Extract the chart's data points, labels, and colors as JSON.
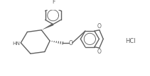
{
  "bg_color": "#ffffff",
  "line_color": "#606060",
  "lw": 1.0,
  "fig_width": 2.11,
  "fig_height": 1.08,
  "dpi": 100,
  "xlim": [
    0,
    10.5
  ],
  "ylim": [
    0,
    5.2
  ]
}
